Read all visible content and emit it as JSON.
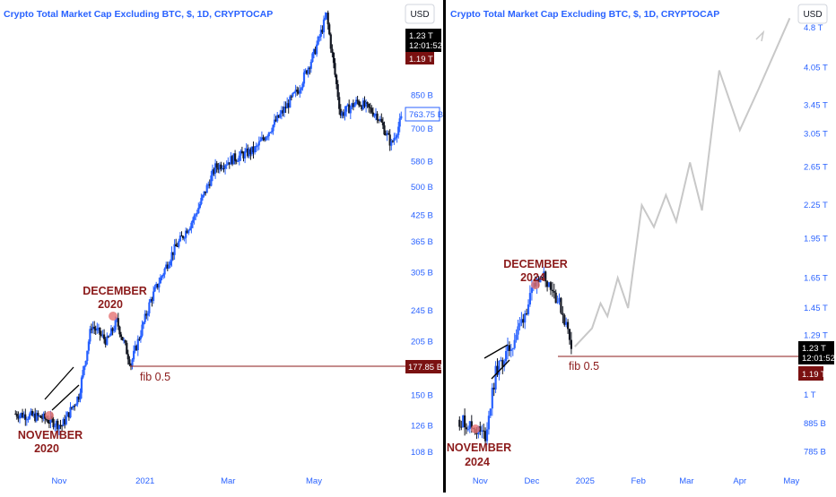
{
  "chart_data": [
    {
      "type": "candlestick",
      "title": "Crypto Total Market Cap Excluding BTC, $, 1D, CRYPTOCAP",
      "currency_button": "USD",
      "scale": "log",
      "x_ticks": [
        "Nov",
        "2021",
        "Mar",
        "May"
      ],
      "y_ticks": [
        "850 B",
        "700 B",
        "580 B",
        "500 B",
        "425 B",
        "365 B",
        "305 B",
        "245 B",
        "205 B",
        "150 B",
        "126 B",
        "108 B"
      ],
      "y_range_billions": [
        100,
        1400
      ],
      "price_box": {
        "value": "1.23 T",
        "time": "12:01:52"
      },
      "low_box": "1.19 T",
      "current_label": "763.75 B",
      "fib_label_value": "177.85 B",
      "annotations": [
        {
          "text_line1": "DECEMBER",
          "text_line2": "2020"
        },
        {
          "text_line1": "NOVEMBER",
          "text_line2": "2020"
        }
      ],
      "fib_text": "fib 0.5",
      "series_points": [
        [
          "2020-10-01",
          135
        ],
        [
          "2020-10-20",
          132
        ],
        [
          "2020-11-03",
          126
        ],
        [
          "2020-11-15",
          150
        ],
        [
          "2020-11-24",
          225
        ],
        [
          "2020-12-05",
          205
        ],
        [
          "2020-12-12",
          230
        ],
        [
          "2020-12-22",
          180
        ],
        [
          "2021-01-05",
          260
        ],
        [
          "2021-01-20",
          340
        ],
        [
          "2021-02-05",
          420
        ],
        [
          "2021-02-20",
          560
        ],
        [
          "2021-03-05",
          590
        ],
        [
          "2021-03-20",
          620
        ],
        [
          "2021-04-05",
          740
        ],
        [
          "2021-04-20",
          880
        ],
        [
          "2021-05-01",
          1080
        ],
        [
          "2021-05-10",
          1350
        ],
        [
          "2021-05-20",
          760
        ],
        [
          "2021-06-01",
          820
        ],
        [
          "2021-06-15",
          760
        ],
        [
          "2021-06-25",
          640
        ],
        [
          "2021-07-02",
          740
        ]
      ]
    },
    {
      "type": "candlestick",
      "title": "Crypto Total Market Cap Excluding BTC, $, 1D, CRYPTOCAP",
      "currency_button": "USD",
      "scale": "log",
      "x_ticks": [
        "Nov",
        "Dec",
        "2025",
        "Feb",
        "Mar",
        "Apr",
        "May"
      ],
      "y_ticks": [
        "4.8 T",
        "4.05 T",
        "3.45 T",
        "3.05 T",
        "2.65 T",
        "2.25 T",
        "1.95 T",
        "1.65 T",
        "1.45 T",
        "1.29 T",
        "1 T",
        "885 B",
        "785 B"
      ],
      "y_range_billions": [
        740,
        5200
      ],
      "price_box": {
        "value": "1.23 T",
        "time": "12:01:52"
      },
      "low_box": "1.19 T",
      "annotations": [
        {
          "text_line1": "DECEMBER",
          "text_line2": "2024"
        },
        {
          "text_line1": "NOVEMBER",
          "text_line2": "2024"
        }
      ],
      "fib_text": "fib 0.5",
      "series_points": [
        [
          "2024-10-20",
          900
        ],
        [
          "2024-10-28",
          870
        ],
        [
          "2024-11-04",
          840
        ],
        [
          "2024-11-10",
          1100
        ],
        [
          "2024-11-20",
          1250
        ],
        [
          "2024-11-28",
          1450
        ],
        [
          "2024-12-06",
          1700
        ],
        [
          "2024-12-12",
          1600
        ],
        [
          "2024-12-18",
          1450
        ],
        [
          "2024-12-24",
          1250
        ]
      ],
      "projection_points": [
        [
          "2024-12-26",
          1230
        ],
        [
          "2025-01-05",
          1330
        ],
        [
          "2025-01-10",
          1480
        ],
        [
          "2025-01-14",
          1400
        ],
        [
          "2025-01-20",
          1650
        ],
        [
          "2025-01-26",
          1450
        ],
        [
          "2025-02-03",
          2250
        ],
        [
          "2025-02-10",
          2050
        ],
        [
          "2025-02-17",
          2350
        ],
        [
          "2025-02-23",
          2100
        ],
        [
          "2025-03-03",
          2700
        ],
        [
          "2025-03-10",
          2200
        ],
        [
          "2025-03-20",
          4000
        ],
        [
          "2025-04-01",
          3100
        ],
        [
          "2025-04-12",
          3700
        ],
        [
          "2025-04-30",
          5000
        ]
      ]
    }
  ]
}
